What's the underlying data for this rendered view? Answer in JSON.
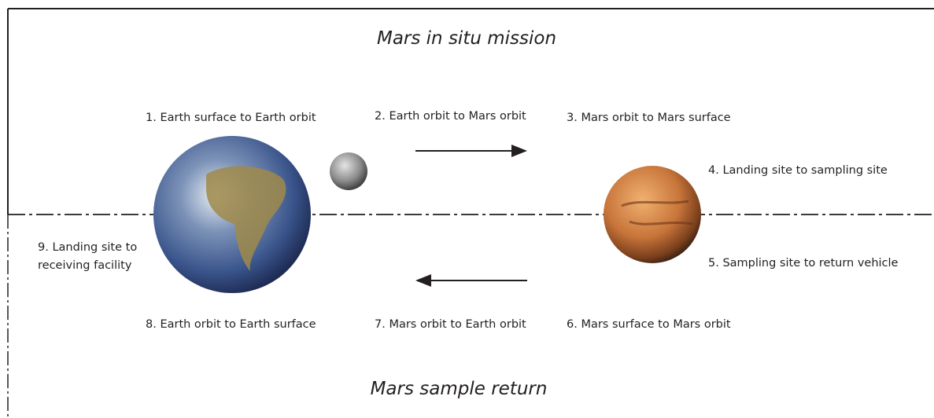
{
  "title_top": "Mars in situ mission",
  "title_bottom": "Mars sample return",
  "steps": [
    "1. Earth surface to Earth orbit",
    "2. Earth orbit to Mars orbit",
    "3. Mars orbit to Mars surface",
    "4. Landing site to sampling site",
    "5. Sampling site to return vehicle",
    "6. Mars surface to Mars orbit",
    "7. Mars orbit to Earth orbit",
    "8. Earth orbit to Earth surface",
    "9. Landing site to receiving facility"
  ]
}
